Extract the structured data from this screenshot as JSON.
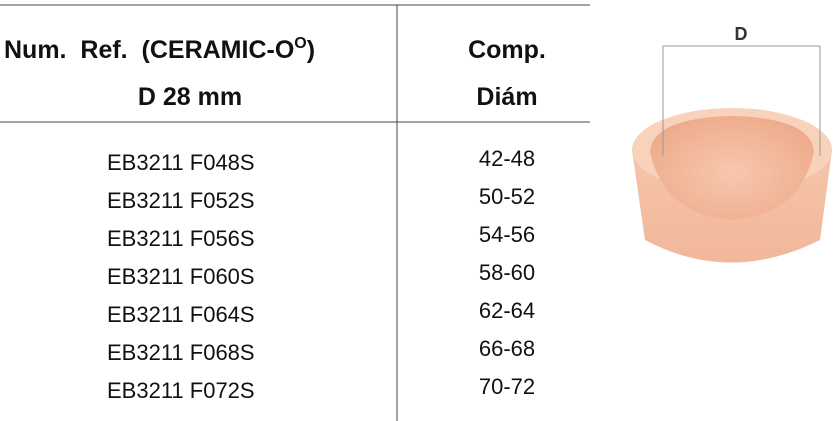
{
  "table": {
    "header": {
      "col1": {
        "line1_text": "Num.  Ref.  (CERAMIC-O",
        "line1_superscript": "O",
        "line1_suffix": ")",
        "line2": "D 28 mm"
      },
      "col2": {
        "line1": "Comp.",
        "line2": "Diám"
      }
    },
    "rows": [
      [
        "EB3211 F048S",
        "42-48"
      ],
      [
        "EB3211 F052S",
        "50-52"
      ],
      [
        "EB3211 F056S",
        "54-56"
      ],
      [
        "EB3211 F060S",
        "58-60"
      ],
      [
        "EB3211 F064S",
        "62-64"
      ],
      [
        "EB3211 F068S",
        "66-68"
      ],
      [
        "EB3211 F072S",
        "70-72"
      ]
    ]
  },
  "image": {
    "dimension_label": "D"
  }
}
